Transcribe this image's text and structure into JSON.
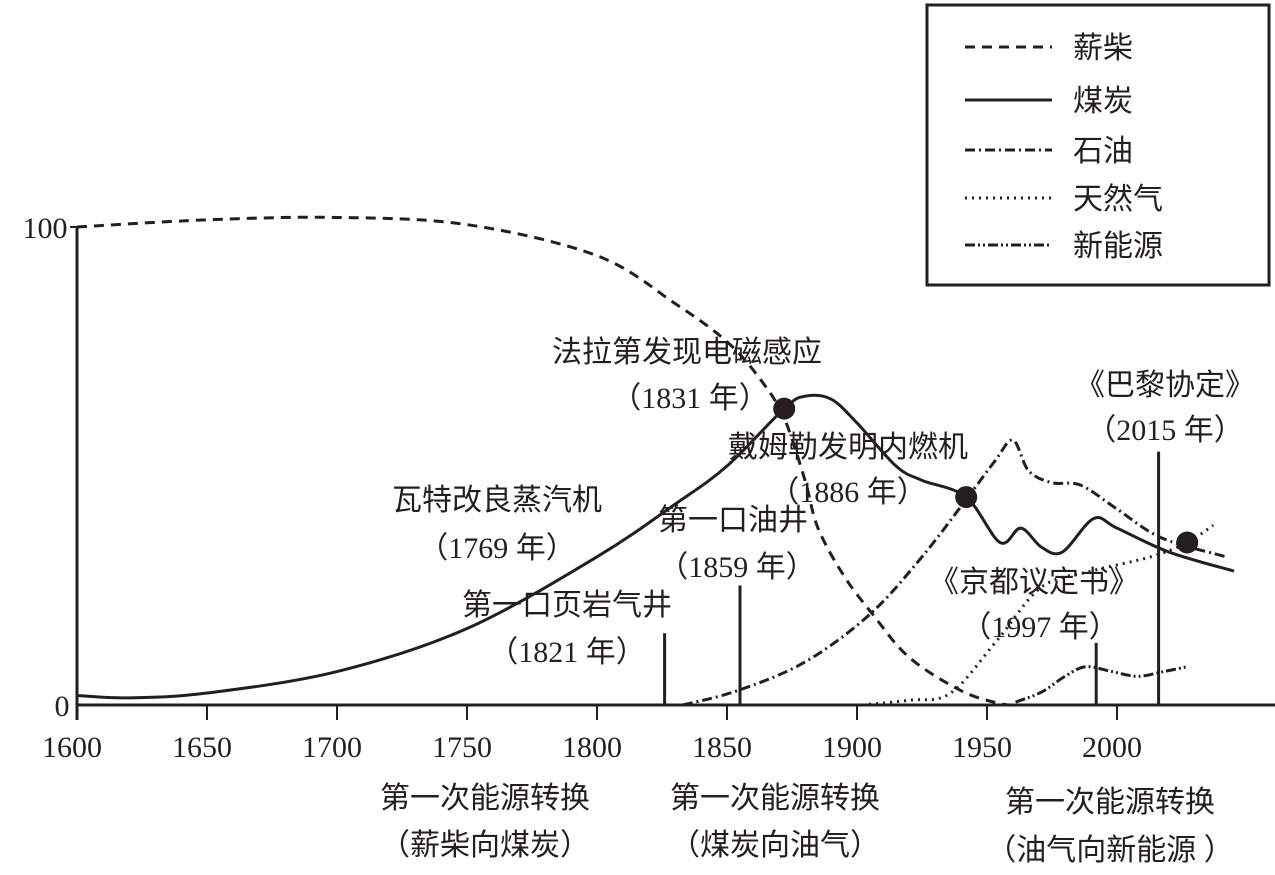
{
  "chart_data": {
    "type": "line",
    "title": "",
    "xlabel": "",
    "ylabel": "",
    "xlim": [
      1600,
      2050
    ],
    "ylim": [
      0,
      100
    ],
    "x_ticks": [
      "1600",
      "1650",
      "1700",
      "1750",
      "1800",
      "1850",
      "1900",
      "1950",
      "2000"
    ],
    "y_ticks": [
      "0",
      "100"
    ],
    "legend_position": "top-right",
    "color": "#231f20",
    "series": [
      {
        "name": "薪柴",
        "style": "dashed",
        "points": [
          [
            1600,
            100
          ],
          [
            1650,
            101.5
          ],
          [
            1700,
            102
          ],
          [
            1750,
            100.5
          ],
          [
            1800,
            94
          ],
          [
            1830,
            84
          ],
          [
            1850,
            76
          ],
          [
            1863,
            68
          ],
          [
            1872,
            60
          ],
          [
            1880,
            47
          ],
          [
            1885,
            37
          ],
          [
            1895,
            27
          ],
          [
            1906,
            19
          ],
          [
            1920,
            10
          ],
          [
            1940,
            3
          ],
          [
            1955,
            0.3
          ],
          [
            1962,
            0
          ]
        ]
      },
      {
        "name": "煤炭",
        "style": "solid",
        "points": [
          [
            1600,
            2
          ],
          [
            1620,
            1.5
          ],
          [
            1650,
            2.5
          ],
          [
            1700,
            7
          ],
          [
            1750,
            16
          ],
          [
            1800,
            31
          ],
          [
            1830,
            42
          ],
          [
            1850,
            50
          ],
          [
            1872,
            62
          ],
          [
            1880,
            64.6
          ],
          [
            1890,
            64
          ],
          [
            1900,
            59
          ],
          [
            1915,
            50
          ],
          [
            1925,
            47
          ],
          [
            1942,
            43.5
          ],
          [
            1955,
            34
          ],
          [
            1963,
            37
          ],
          [
            1971,
            33
          ],
          [
            1979,
            32
          ],
          [
            1991,
            39
          ],
          [
            2000,
            37
          ],
          [
            2020,
            32
          ],
          [
            2045,
            28
          ]
        ]
      },
      {
        "name": "石油",
        "style": "dash-dot",
        "points": [
          [
            1833,
            0
          ],
          [
            1854,
            3
          ],
          [
            1880,
            9
          ],
          [
            1905,
            19
          ],
          [
            1925,
            31
          ],
          [
            1942,
            43
          ],
          [
            1953,
            51
          ],
          [
            1960,
            55.4
          ],
          [
            1966,
            49
          ],
          [
            1975,
            46.5
          ],
          [
            1986,
            46
          ],
          [
            2000,
            41
          ],
          [
            2017,
            35
          ],
          [
            2042,
            31
          ]
        ]
      },
      {
        "name": "天然气",
        "style": "dotted",
        "points": [
          [
            1902,
            0
          ],
          [
            1920,
            1
          ],
          [
            1936,
            2.5
          ],
          [
            1954,
            13.6
          ],
          [
            1971,
            24.7
          ],
          [
            1990,
            28
          ],
          [
            2013,
            31
          ],
          [
            2027,
            34
          ],
          [
            2037,
            37.6
          ]
        ]
      },
      {
        "name": "新能源",
        "style": "dash-dot-dot",
        "points": [
          [
            1961,
            0.6
          ],
          [
            1971,
            2.7
          ],
          [
            1980,
            6
          ],
          [
            1988,
            8
          ],
          [
            1998,
            7
          ],
          [
            2008,
            6
          ],
          [
            2018,
            7
          ],
          [
            2027,
            8
          ]
        ]
      }
    ],
    "markers": [
      [
        1872,
        62
      ],
      [
        1942,
        43.5
      ],
      [
        2027,
        34
      ]
    ],
    "event_lines": [
      {
        "year": 1826,
        "top": 15
      },
      {
        "year": 1855,
        "top": 25
      },
      {
        "year": 1992,
        "top": 13
      },
      {
        "year": 2016,
        "top": 53
      }
    ],
    "annotations": [
      {
        "title": "法拉第发现电磁感应",
        "date": "（1831 年）"
      },
      {
        "title": "瓦特改良蒸汽机",
        "date": "（1769 年）"
      },
      {
        "title": "第一口油井",
        "date": "（1859 年）"
      },
      {
        "title": "第一口页岩气井",
        "date": "（1821 年）"
      },
      {
        "title": "戴姆勒发明内燃机",
        "date": "（1886 年）"
      },
      {
        "title": "《京都议定书》",
        "date": "（1997 年）"
      },
      {
        "title": "《巴黎协定》",
        "date": "（2015 年）"
      }
    ],
    "transitions": [
      {
        "title": "第一次能源转换",
        "desc": "（薪柴向煤炭）"
      },
      {
        "title": "第一次能源转换",
        "desc": "（煤炭向油气）"
      },
      {
        "title": "第一次能源转换",
        "desc": "（油气向新能源 ）"
      }
    ]
  }
}
